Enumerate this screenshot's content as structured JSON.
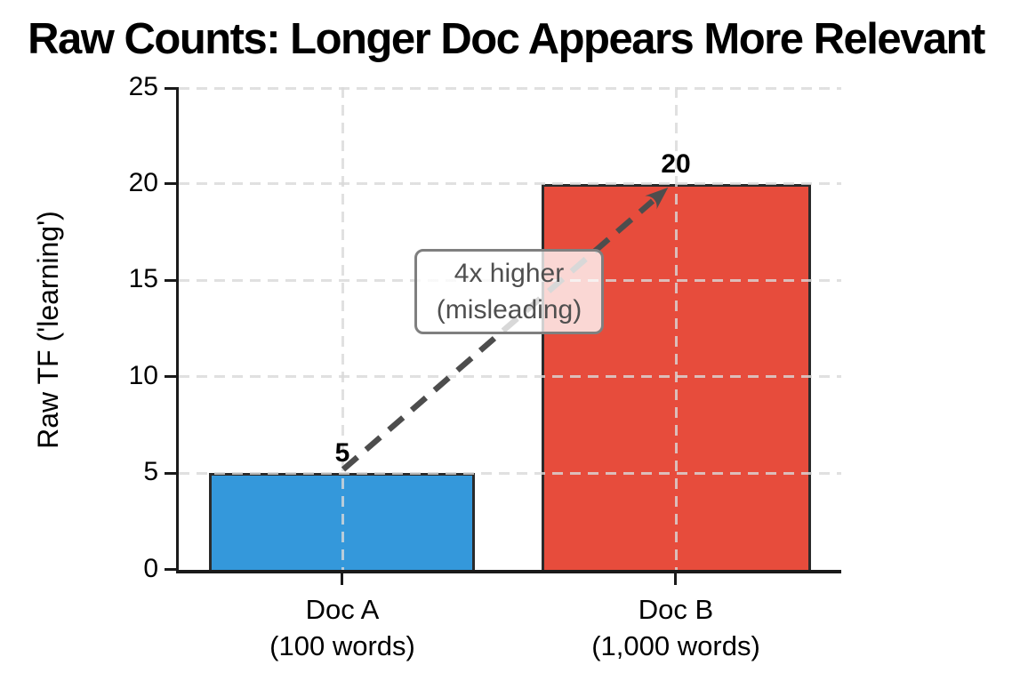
{
  "chart_data": {
    "type": "bar",
    "title": "Raw Counts: Longer Doc Appears More Relevant",
    "ylabel": "Raw TF ('learning')",
    "xlabel": "",
    "ylim": [
      0,
      25
    ],
    "yticks": [
      0,
      5,
      10,
      15,
      20,
      25
    ],
    "grid": true,
    "grid_style": "dashed",
    "categories": [
      {
        "line1": "Doc A",
        "line2": "(100 words)"
      },
      {
        "line1": "Doc B",
        "line2": "(1,000 words)"
      }
    ],
    "values": [
      5,
      20
    ],
    "value_labels": [
      "5",
      "20"
    ],
    "bar_colors": [
      "#3498db",
      "#e74c3c"
    ],
    "bar_edge_color": "#2b2b2b",
    "annotation": {
      "line1": "4x higher",
      "line2": "(misleading)",
      "text_color": "#4f4f4f",
      "border_color": "#7f7f7f",
      "arrow_color": "#4d4d4d",
      "arrow_from_value": 5,
      "arrow_to_value": 20
    }
  }
}
